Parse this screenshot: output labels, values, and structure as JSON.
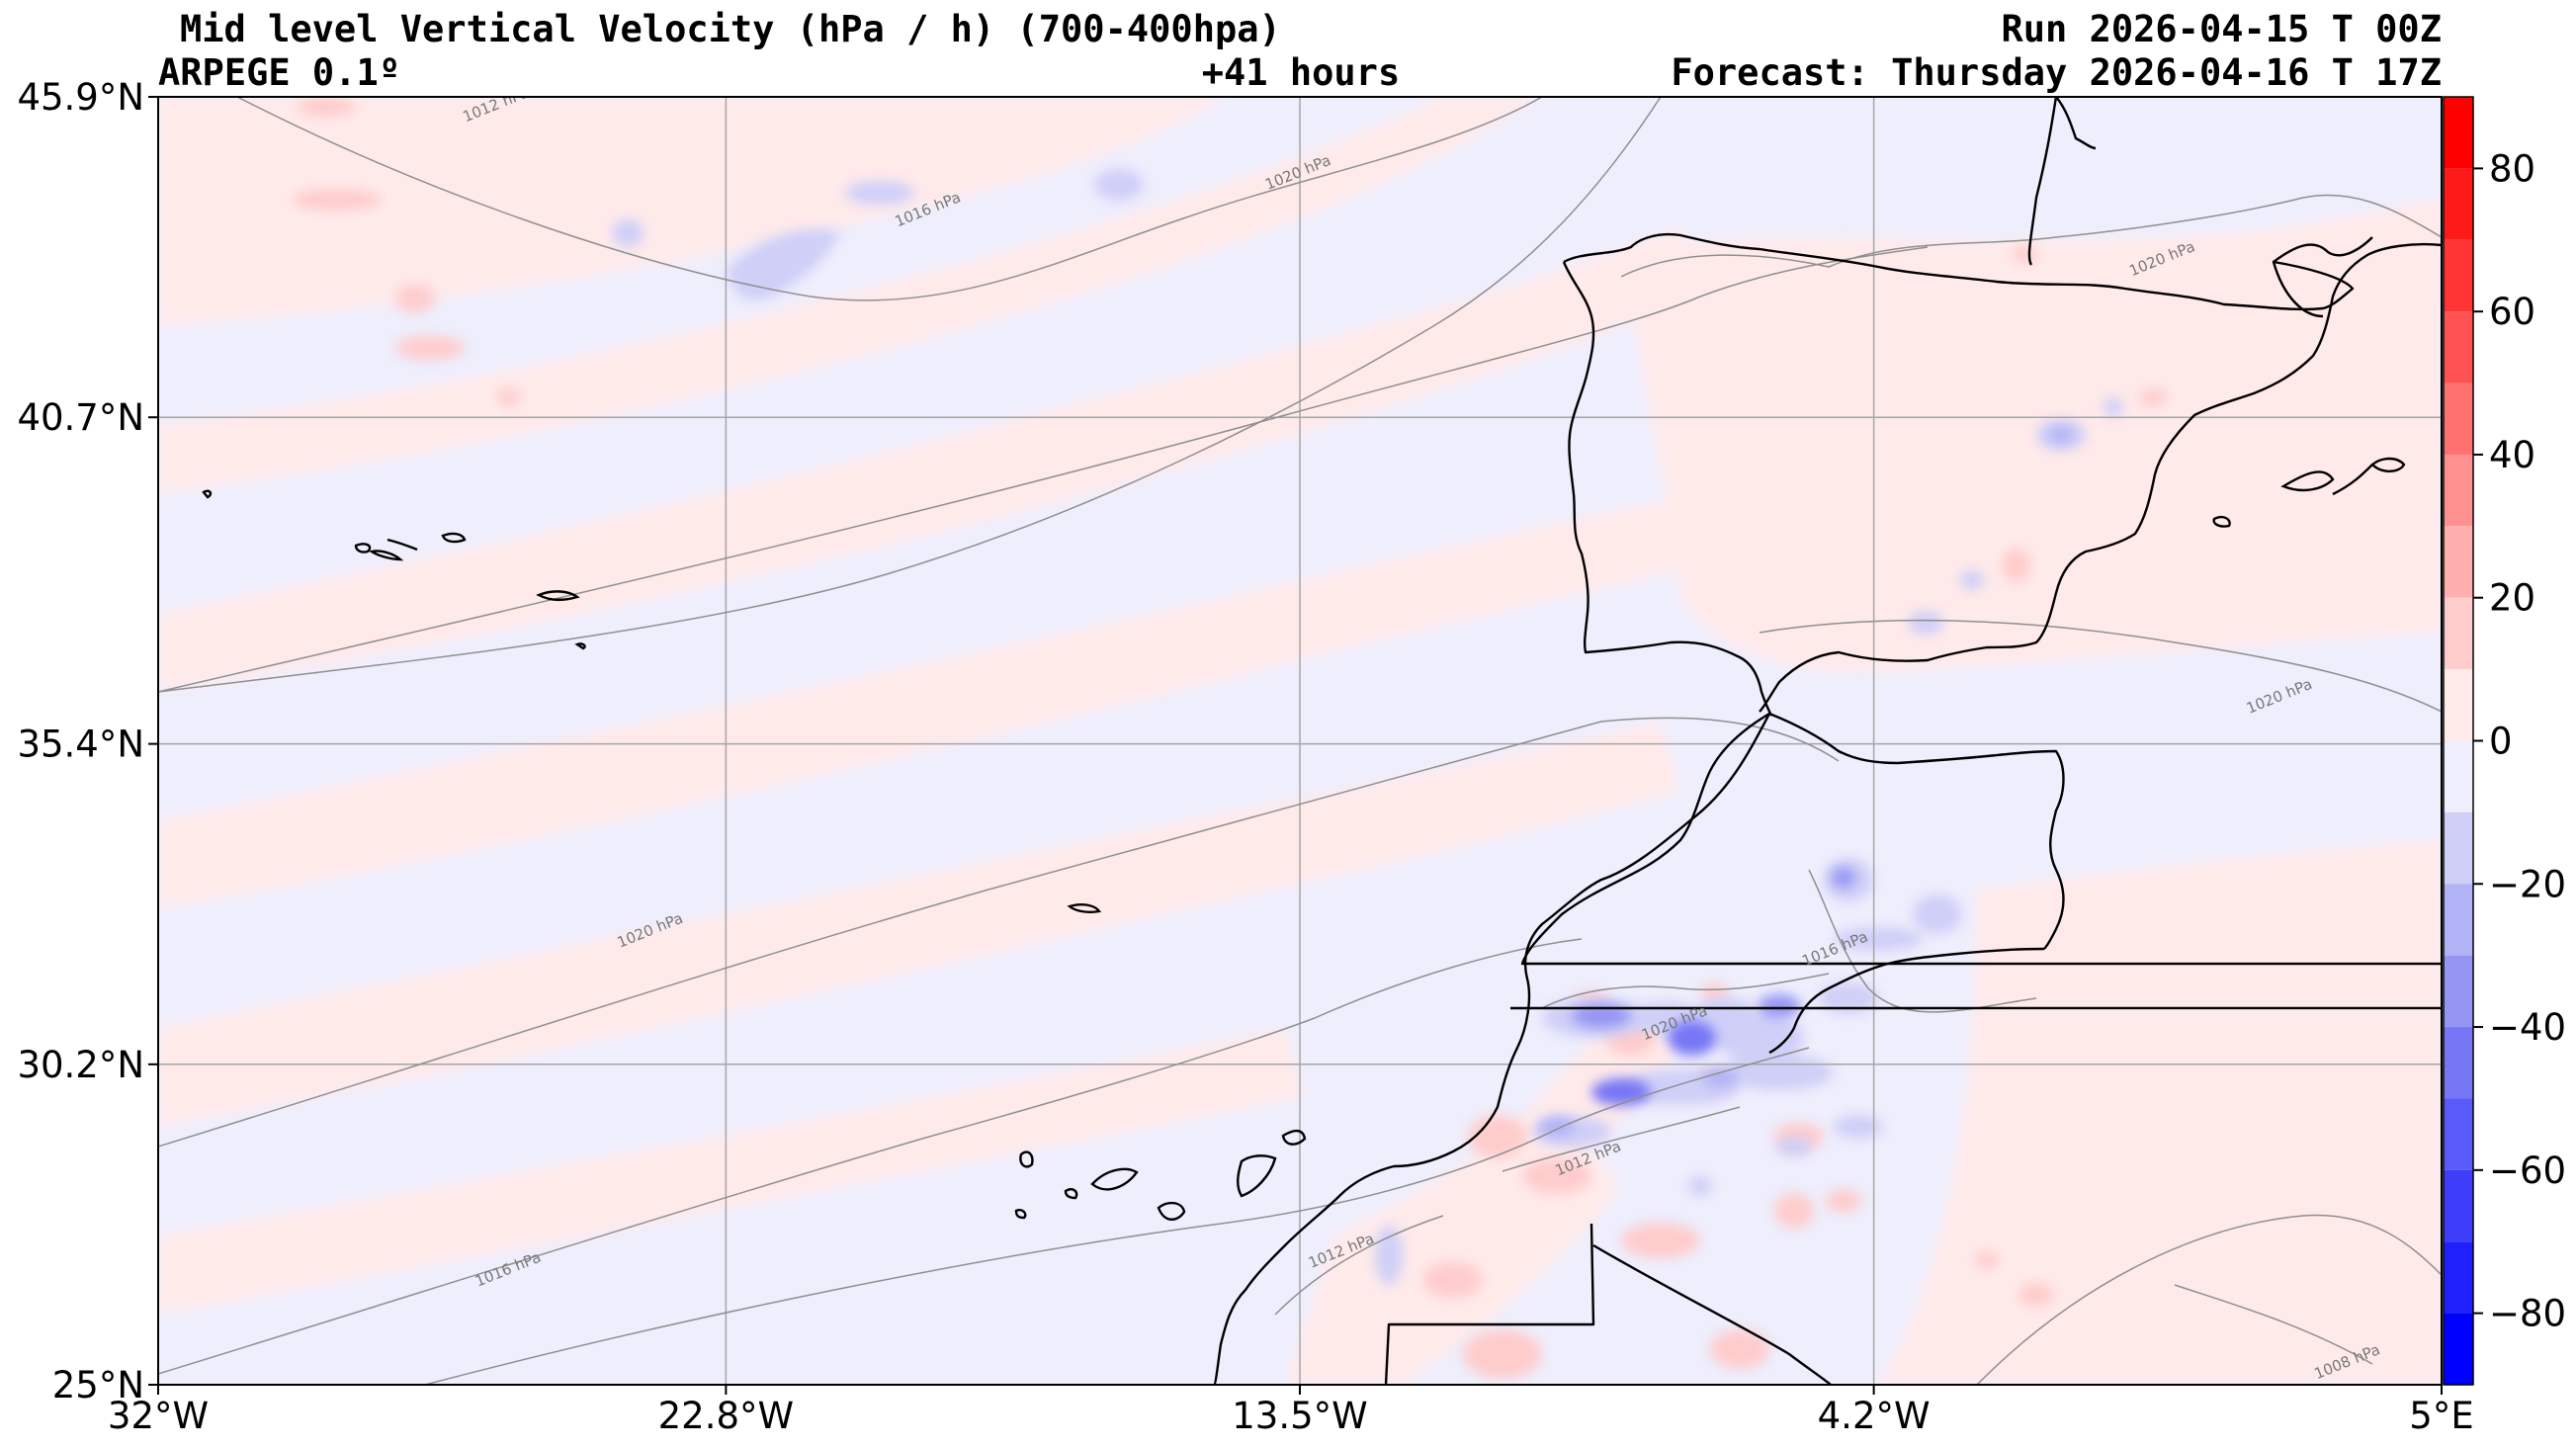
{
  "header": {
    "title": "Mid level Vertical Velocity (hPa / h)  (700-400hpa)",
    "model": "ARPEGE 0.1º",
    "lead": "+41 hours",
    "run": "Run 2026-04-15 T 00Z",
    "forecast": "Forecast: Thursday 2026-04-16 T 17Z"
  },
  "map": {
    "lon_range": [
      -32,
      5
    ],
    "lat_range": [
      25,
      45.9
    ],
    "lat_ticks": [
      {
        "value": 45.9,
        "label": "45.9°N"
      },
      {
        "value": 40.7,
        "label": "40.7°N"
      },
      {
        "value": 35.4,
        "label": "35.4°N"
      },
      {
        "value": 30.2,
        "label": "30.2°N"
      },
      {
        "value": 25,
        "label": "25°N"
      }
    ],
    "lon_ticks": [
      {
        "value": -32,
        "label": "32°W"
      },
      {
        "value": -22.8,
        "label": "22.8°W"
      },
      {
        "value": -13.5,
        "label": "13.5°W"
      },
      {
        "value": -4.2,
        "label": "4.2°W"
      },
      {
        "value": 5,
        "label": "5°E"
      }
    ],
    "grid": true,
    "isobar_labels": [
      {
        "text": "1012 hPa",
        "lon": -26.5,
        "lat": 45.7
      },
      {
        "text": "1016 hPa",
        "lon": -19.5,
        "lat": 44.0
      },
      {
        "text": "1020 hPa",
        "lon": -13.5,
        "lat": 44.6
      },
      {
        "text": "1020 hPa",
        "lon": 0.5,
        "lat": 43.2
      },
      {
        "text": "1020 hPa",
        "lon": 2.4,
        "lat": 36.1
      },
      {
        "text": "1020 hPa",
        "lon": -24.0,
        "lat": 32.3
      },
      {
        "text": "1016 hPa",
        "lon": -4.8,
        "lat": 32.0
      },
      {
        "text": "1020 hPa",
        "lon": -7.4,
        "lat": 30.8
      },
      {
        "text": "1012 hPa",
        "lon": -8.8,
        "lat": 28.6
      },
      {
        "text": "1016 hPa",
        "lon": -26.3,
        "lat": 26.8
      },
      {
        "text": "1012 hPa",
        "lon": -12.8,
        "lat": 27.1
      },
      {
        "text": "1008 hPa",
        "lon": 3.5,
        "lat": 25.3
      }
    ],
    "colors": {
      "land_border": "#000000",
      "isobar": "#8f8f8f",
      "grid": "#a6a6a6",
      "neutral": "#eeeefd"
    }
  },
  "colorbar": {
    "min": -90,
    "max": 90,
    "ticks": [
      {
        "value": 80,
        "label": "80"
      },
      {
        "value": 60,
        "label": "60"
      },
      {
        "value": 40,
        "label": "40"
      },
      {
        "value": 20,
        "label": "20"
      },
      {
        "value": 0,
        "label": "0"
      },
      {
        "value": -20,
        "label": "−20"
      },
      {
        "value": -40,
        "label": "−40"
      },
      {
        "value": -60,
        "label": "−60"
      },
      {
        "value": -80,
        "label": "−80"
      }
    ],
    "bins": [
      {
        "from": 80,
        "to": 90,
        "color": "#ff0000"
      },
      {
        "from": 70,
        "to": 80,
        "color": "#ff1a1a"
      },
      {
        "from": 60,
        "to": 70,
        "color": "#ff3434"
      },
      {
        "from": 50,
        "to": 60,
        "color": "#ff5252"
      },
      {
        "from": 40,
        "to": 50,
        "color": "#ff7070"
      },
      {
        "from": 30,
        "to": 40,
        "color": "#ff9090"
      },
      {
        "from": 20,
        "to": 30,
        "color": "#ffafaf"
      },
      {
        "from": 10,
        "to": 20,
        "color": "#ffcccc"
      },
      {
        "from": 0,
        "to": 10,
        "color": "#ffeaea"
      },
      {
        "from": -10,
        "to": 0,
        "color": "#eeeefd"
      },
      {
        "from": -20,
        "to": -10,
        "color": "#cfcff8"
      },
      {
        "from": -30,
        "to": -20,
        "color": "#b2b2f6"
      },
      {
        "from": -40,
        "to": -30,
        "color": "#9595f4"
      },
      {
        "from": -50,
        "to": -40,
        "color": "#7777f6"
      },
      {
        "from": -60,
        "to": -50,
        "color": "#5a5af8"
      },
      {
        "from": -70,
        "to": -60,
        "color": "#3d3dfa"
      },
      {
        "from": -80,
        "to": -70,
        "color": "#2020fc"
      },
      {
        "from": -90,
        "to": -80,
        "color": "#0000ff"
      }
    ]
  }
}
